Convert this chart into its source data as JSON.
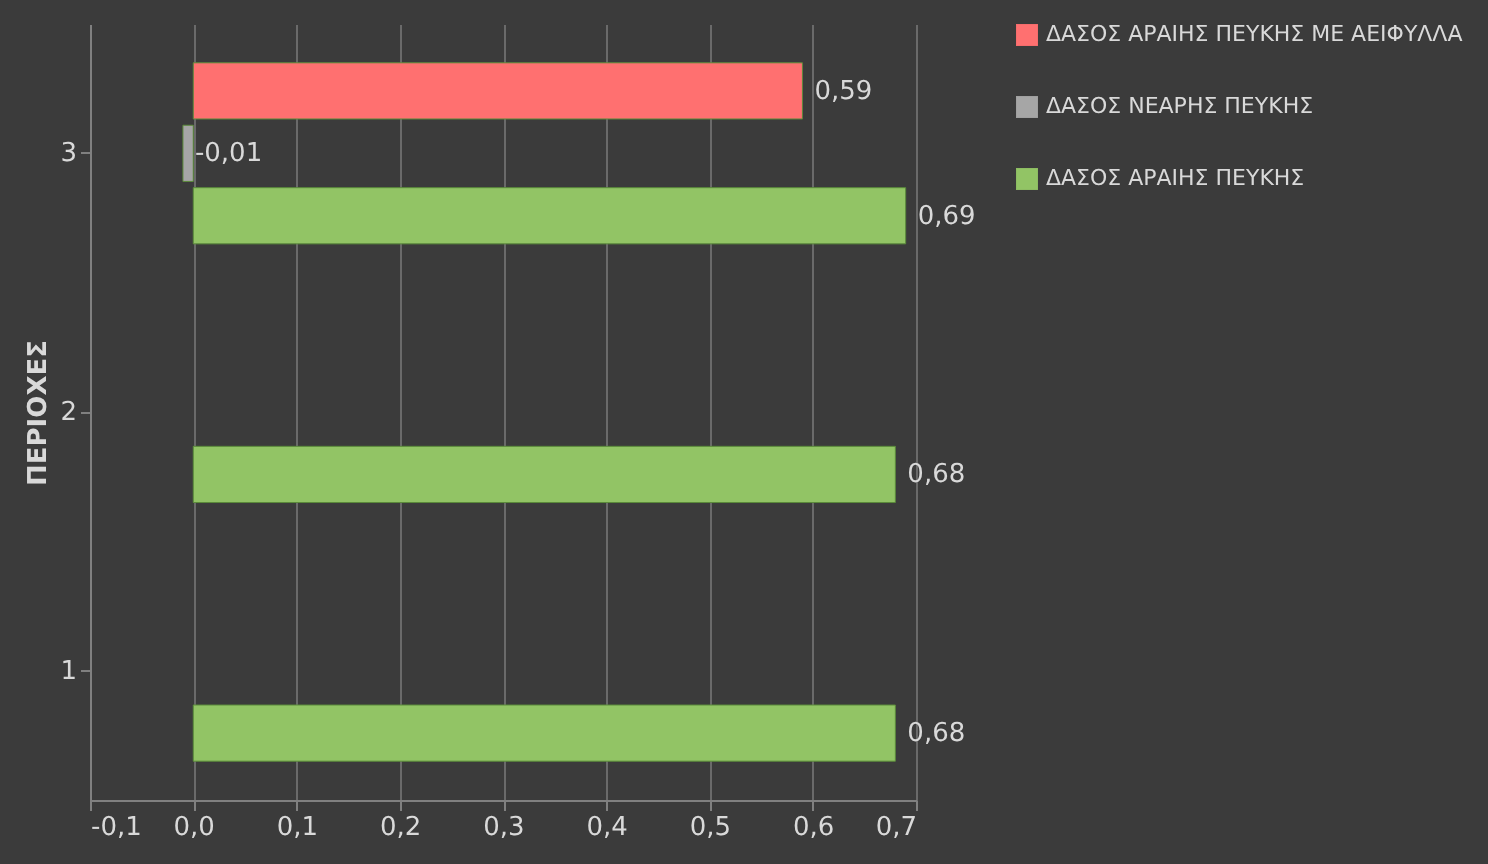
{
  "chart_data": {
    "type": "bar",
    "orientation": "horizontal",
    "ylabel": "ΠΕΡΙΟΧΕΣ",
    "categories": [
      "3",
      "2",
      "1"
    ],
    "series": [
      {
        "name": "ΔΑΣΟΣ ΑΡΑΙΗΣ ΠΕΥΚΗΣ ΜΕ ΑΕΙΦΥΛΛΑ",
        "color": "#ff7070",
        "values": [
          0.59,
          null,
          null
        ],
        "value_labels": [
          "0,59",
          null,
          null
        ]
      },
      {
        "name": "ΔΑΣΟΣ ΝΕΑΡΗΣ ΠΕΥΚΗΣ",
        "color": "#a6a6a6",
        "values": [
          -0.01,
          null,
          null
        ],
        "value_labels": [
          "-0,01",
          null,
          null
        ]
      },
      {
        "name": "ΔΑΣΟΣ ΑΡΑΙΗΣ ΠΕΥΚΗΣ",
        "color": "#92c465",
        "values": [
          0.69,
          0.68,
          0.68
        ],
        "value_labels": [
          "0,69",
          "0,68",
          "0,68"
        ]
      }
    ],
    "xlim": [
      -0.1,
      0.7
    ],
    "xticks": [
      {
        "value": -0.1,
        "label": "-0,1"
      },
      {
        "value": 0.0,
        "label": "0,0"
      },
      {
        "value": 0.1,
        "label": "0,1"
      },
      {
        "value": 0.2,
        "label": "0,2"
      },
      {
        "value": 0.3,
        "label": "0,3"
      },
      {
        "value": 0.4,
        "label": "0,4"
      },
      {
        "value": 0.5,
        "label": "0,5"
      },
      {
        "value": 0.6,
        "label": "0,6"
      },
      {
        "value": 0.7,
        "label": "0,7"
      }
    ],
    "grid": "x",
    "legend": "right"
  }
}
